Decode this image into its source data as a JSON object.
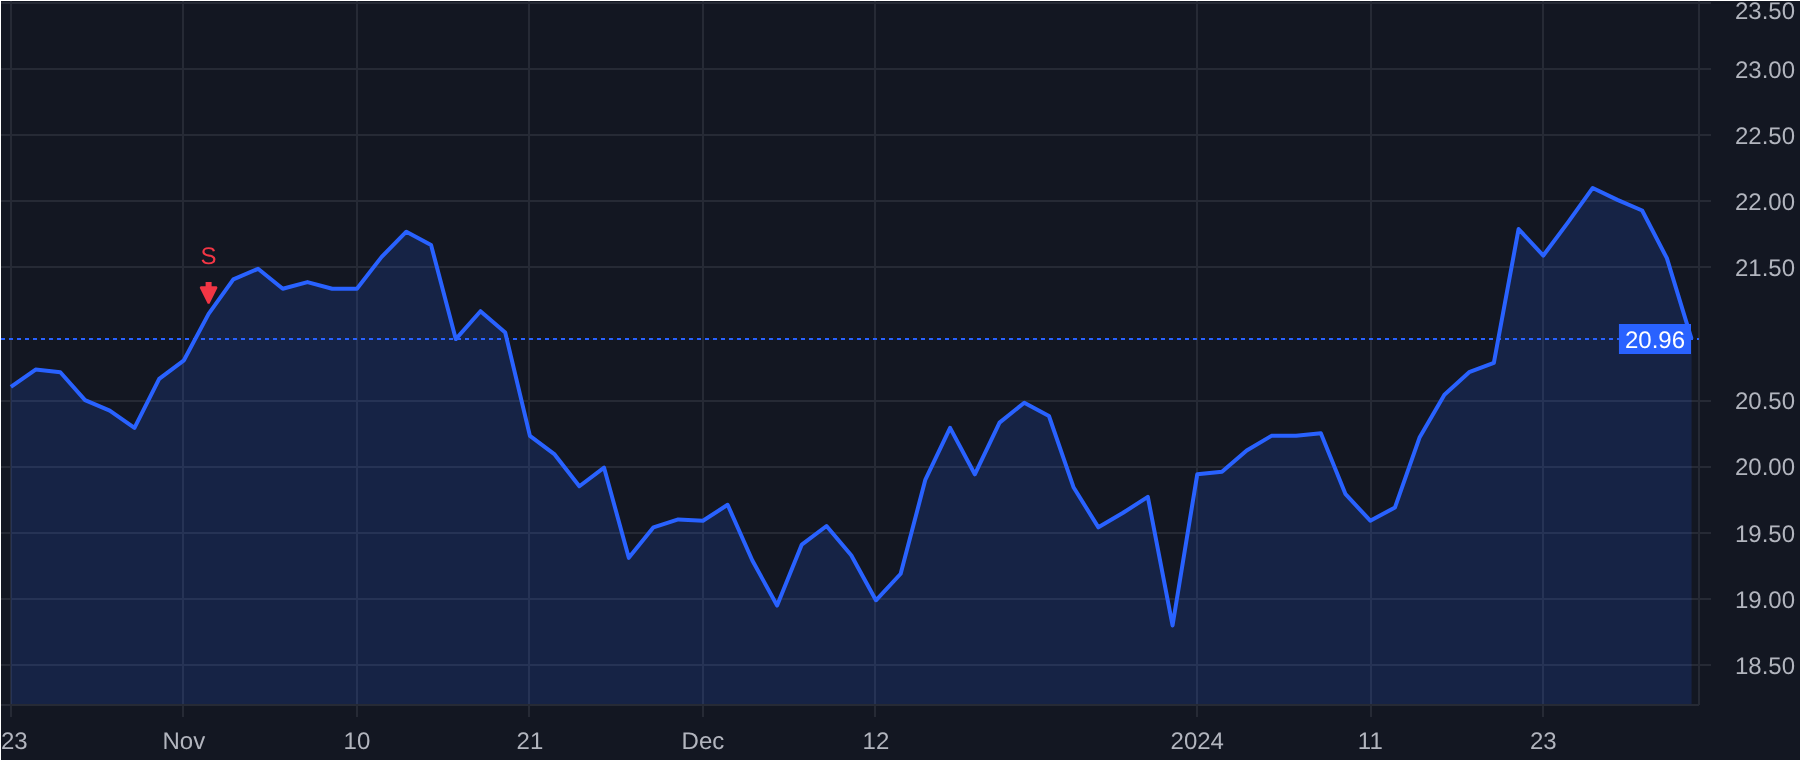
{
  "chart_data": {
    "type": "area",
    "color": "#2962ff",
    "categories": [
      "23",
      null,
      null,
      null,
      null,
      null,
      null,
      "Nov",
      null,
      null,
      null,
      null,
      null,
      null,
      "10",
      null,
      null,
      null,
      null,
      null,
      null,
      "21",
      null,
      null,
      null,
      null,
      null,
      null,
      "Dec",
      null,
      null,
      null,
      null,
      null,
      null,
      "12",
      null,
      null,
      null,
      null,
      null,
      null,
      null,
      null,
      null,
      null,
      null,
      null,
      "2024",
      null,
      null,
      null,
      null,
      null,
      null,
      "11",
      null,
      null,
      null,
      null,
      null,
      null,
      "23",
      null,
      null,
      null,
      null,
      null,
      null
    ],
    "values": [
      20.6,
      20.73,
      20.71,
      20.5,
      20.42,
      20.29,
      20.66,
      20.8,
      21.15,
      21.41,
      21.49,
      21.34,
      21.39,
      21.34,
      21.34,
      21.58,
      21.77,
      21.67,
      20.96,
      21.17,
      21.01,
      20.23,
      20.09,
      19.85,
      19.99,
      19.31,
      19.54,
      19.6,
      19.59,
      19.71,
      19.29,
      18.95,
      19.41,
      19.55,
      19.33,
      18.99,
      19.19,
      19.9,
      20.29,
      19.94,
      20.33,
      20.48,
      20.38,
      19.84,
      19.54,
      19.65,
      19.77,
      18.8,
      19.94,
      19.96,
      20.12,
      20.23,
      20.23,
      20.25,
      19.79,
      19.59,
      19.69,
      20.22,
      20.54,
      20.71,
      20.78,
      21.79,
      21.59,
      21.84,
      22.1,
      22.01,
      21.93,
      21.57,
      20.96
    ],
    "ylim": [
      18.2,
      23.51
    ],
    "yticks": [
      {
        "value": 18.5,
        "label": "18.50"
      },
      {
        "value": 19,
        "label": "19.00"
      },
      {
        "value": 19.5,
        "label": "19.50"
      },
      {
        "value": 20,
        "label": "20.00"
      },
      {
        "value": 20.5,
        "label": "20.50"
      },
      {
        "value": 21.5,
        "label": "21.50"
      },
      {
        "value": 22,
        "label": "22.00"
      },
      {
        "value": 22.5,
        "label": "22.50"
      },
      {
        "value": 23,
        "label": "23.00"
      },
      {
        "value": 23.5,
        "label": "23.50"
      }
    ],
    "ref_lines": [
      {
        "axis": "y",
        "value": 20.96,
        "label": "20.96",
        "color": "#2962ff",
        "line_style": "dotted"
      }
    ],
    "annotations": [
      {
        "text": "S",
        "y": 21.15
      }
    ],
    "grid": true,
    "marker": "none",
    "line_style": "solid"
  }
}
